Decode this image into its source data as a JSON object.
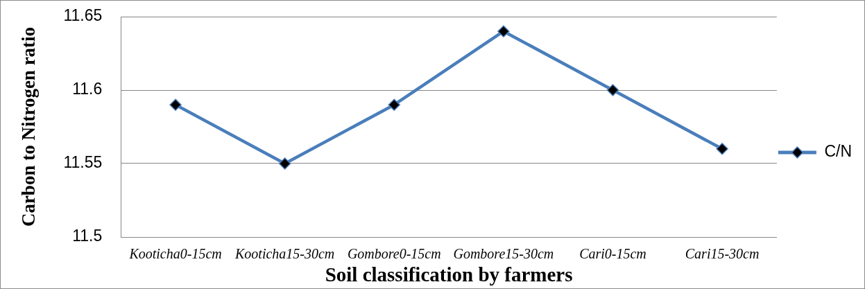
{
  "chart_data": {
    "type": "line",
    "xlabel": "Soil classification by farmers",
    "ylabel": "Carbon to Nitrogen ratio",
    "categories": [
      "Kooticha0-15cm",
      "Kooticha15-30cm",
      "Gombore0-15cm",
      "Gombore15-30cm",
      "Cari0-15cm",
      "Cari15-30cm"
    ],
    "series": [
      {
        "name": "C/N",
        "color": "#4a7ebb",
        "values": [
          11.59,
          11.55,
          11.59,
          11.64,
          11.6,
          11.56
        ]
      }
    ],
    "ylim": [
      11.5,
      11.65
    ],
    "yticks": [
      11.5,
      11.55,
      11.6,
      11.65
    ],
    "grid": "y",
    "legend": "right",
    "marker": "diamond",
    "line_style": "solid"
  }
}
